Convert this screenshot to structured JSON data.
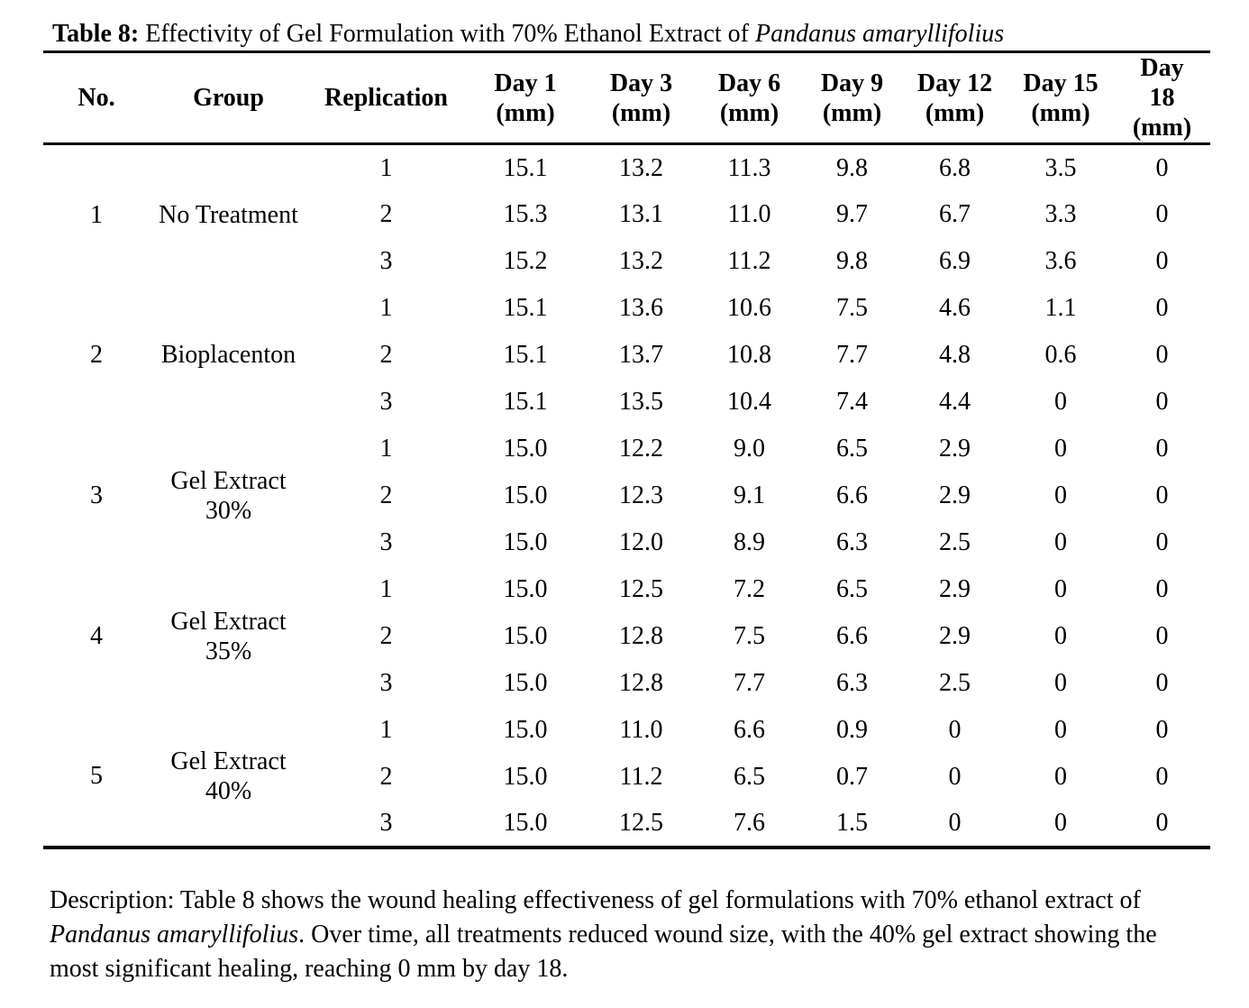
{
  "title": {
    "label": "Table 8:",
    "text": " Effectivity of Gel Formulation with 70% Ethanol Extract of ",
    "species": "Pandanus amaryllifolius"
  },
  "table": {
    "columns": [
      "No.",
      "Group",
      "Replication",
      "Day 1\n(mm)",
      "Day 3\n(mm)",
      "Day 6\n(mm)",
      "Day 9\n(mm)",
      "Day 12\n(mm)",
      "Day 15\n(mm)",
      "Day\n18\n(mm)"
    ],
    "groups": [
      {
        "no": "1",
        "group": "No Treatment",
        "rows": [
          {
            "replication": "1",
            "values": [
              "15.1",
              "13.2",
              "11.3",
              "9.8",
              "6.8",
              "3.5",
              "0"
            ]
          },
          {
            "replication": "2",
            "values": [
              "15.3",
              "13.1",
              "11.0",
              "9.7",
              "6.7",
              "3.3",
              "0"
            ]
          },
          {
            "replication": "3",
            "values": [
              "15.2",
              "13.2",
              "11.2",
              "9.8",
              "6.9",
              "3.6",
              "0"
            ]
          }
        ]
      },
      {
        "no": "2",
        "group": "Bioplacenton",
        "rows": [
          {
            "replication": "1",
            "values": [
              "15.1",
              "13.6",
              "10.6",
              "7.5",
              "4.6",
              "1.1",
              "0"
            ]
          },
          {
            "replication": "2",
            "values": [
              "15.1",
              "13.7",
              "10.8",
              "7.7",
              "4.8",
              "0.6",
              "0"
            ]
          },
          {
            "replication": "3",
            "values": [
              "15.1",
              "13.5",
              "10.4",
              "7.4",
              "4.4",
              "0",
              "0"
            ]
          }
        ]
      },
      {
        "no": "3",
        "group": "Gel Extract\n30%",
        "rows": [
          {
            "replication": "1",
            "values": [
              "15.0",
              "12.2",
              "9.0",
              "6.5",
              "2.9",
              "0",
              "0"
            ]
          },
          {
            "replication": "2",
            "values": [
              "15.0",
              "12.3",
              "9.1",
              "6.6",
              "2.9",
              "0",
              "0"
            ]
          },
          {
            "replication": "3",
            "values": [
              "15.0",
              "12.0",
              "8.9",
              "6.3",
              "2.5",
              "0",
              "0"
            ]
          }
        ]
      },
      {
        "no": "4",
        "group": "Gel Extract\n35%",
        "rows": [
          {
            "replication": "1",
            "values": [
              "15.0",
              "12.5",
              "7.2",
              "6.5",
              "2.9",
              "0",
              "0"
            ]
          },
          {
            "replication": "2",
            "values": [
              "15.0",
              "12.8",
              "7.5",
              "6.6",
              "2.9",
              "0",
              "0"
            ]
          },
          {
            "replication": "3",
            "values": [
              "15.0",
              "12.8",
              "7.7",
              "6.3",
              "2.5",
              "0",
              "0"
            ]
          }
        ]
      },
      {
        "no": "5",
        "group": "Gel Extract\n40%",
        "rows": [
          {
            "replication": "1",
            "values": [
              "15.0",
              "11.0",
              "6.6",
              "0.9",
              "0",
              "0",
              "0"
            ]
          },
          {
            "replication": "2",
            "values": [
              "15.0",
              "11.2",
              "6.5",
              "0.7",
              "0",
              "0",
              "0"
            ]
          },
          {
            "replication": "3",
            "values": [
              "15.0",
              "12.5",
              "7.6",
              "1.5",
              "0",
              "0",
              "0"
            ]
          }
        ]
      }
    ]
  },
  "description": {
    "lead": "Description: Table 8 shows the wound healing effectiveness of gel formulations with 70% ethanol extract of ",
    "species": "Pandanus amaryllifolius",
    "rest": ". Over time, all treatments reduced wound size, with the 40% gel extract showing the most significant healing, reaching 0 mm by day 18."
  },
  "colors": {
    "text": "#000000",
    "background": "#ffffff",
    "rule": "#000000"
  }
}
